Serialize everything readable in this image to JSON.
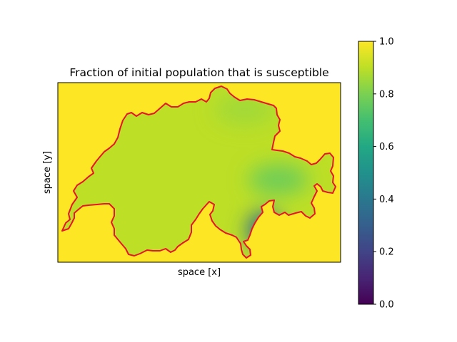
{
  "chart_data": {
    "type": "heatmap",
    "title": "Fraction of initial population that is susceptible",
    "xlabel": "space [x]",
    "ylabel": "space [y]",
    "colormap": "viridis",
    "value_range": [
      0,
      1
    ],
    "colorbar": {
      "ticks": [
        0.0,
        0.2,
        0.4,
        0.6,
        0.8,
        1.0
      ],
      "tick_labels": [
        "0.0",
        "0.2",
        "0.4",
        "0.6",
        "0.8",
        "1.0"
      ],
      "placement": "right"
    },
    "background_value": 1.0,
    "interior_base_value": 0.9,
    "features": [
      {
        "name": "south-east low",
        "x": 0.73,
        "y": 0.18,
        "value": 0.36
      },
      {
        "name": "east band",
        "x": 0.78,
        "y": 0.46,
        "value": 0.78
      },
      {
        "name": "north band",
        "x": 0.66,
        "y": 0.85,
        "value": 0.86
      }
    ],
    "outline_color": "#e8142b",
    "show_axis_ticks": false
  }
}
